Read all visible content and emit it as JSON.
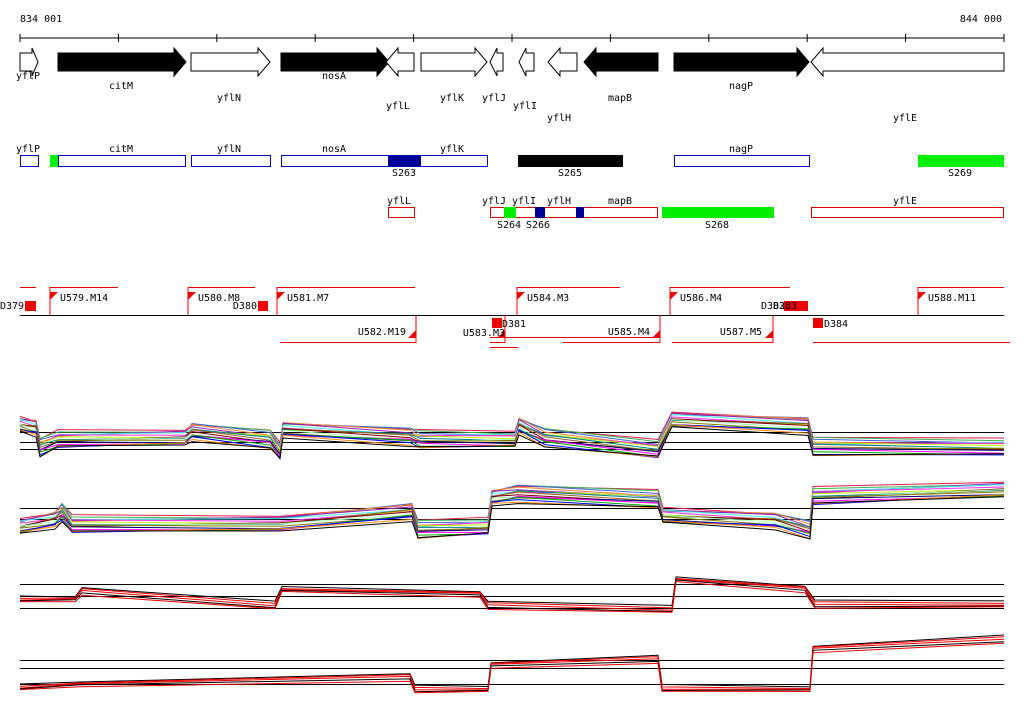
{
  "ruler": {
    "start": "834 001",
    "end": "844 000"
  },
  "genes": [
    "yflP",
    "citM",
    "yflN",
    "nosA",
    "yflL",
    "yflK",
    "yflJ",
    "yflI",
    "yflH",
    "mapB",
    "nagP",
    "yflE"
  ],
  "row2": {
    "top": [
      "yflP",
      "citM",
      "yflN",
      "nosA",
      "yflK",
      "nagP"
    ],
    "bottom": [
      "S263",
      "S265",
      "S269"
    ]
  },
  "row3": {
    "top": [
      "yflL",
      "yflJ",
      "yflI",
      "yflH",
      "mapB",
      "yflE"
    ],
    "bottom": [
      "S264",
      "S266",
      "S268"
    ]
  },
  "elements": [
    "D379",
    "U579.M14",
    "U580.M8",
    "D380",
    "U581.M7",
    "U582.M19",
    "U583.M3",
    "D381",
    "U584.M3",
    "U585.M4",
    "U586.M4",
    "D382",
    "D383",
    "U587.M5",
    "D384",
    "U588.M11"
  ]
}
